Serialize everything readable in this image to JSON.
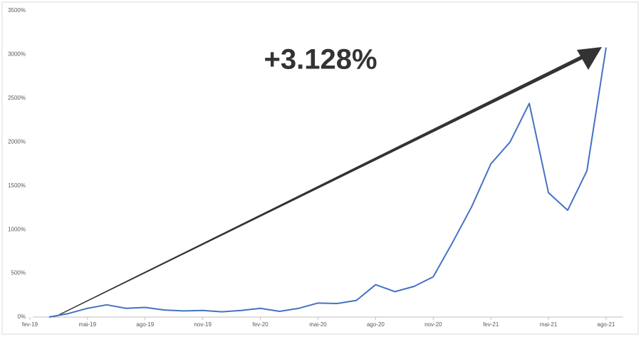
{
  "chart_data": {
    "type": "line",
    "annotation": "+3.128%",
    "x": [
      "2019-03",
      "2019-04",
      "2019-05",
      "2019-06",
      "2019-07",
      "2019-08",
      "2019-09",
      "2019-10",
      "2019-11",
      "2019-12",
      "2020-01",
      "2020-02",
      "2020-03",
      "2020-04",
      "2020-05",
      "2020-06",
      "2020-07",
      "2020-08",
      "2020-09",
      "2020-10",
      "2020-11",
      "2020-12",
      "2021-01",
      "2021-02",
      "2021-03",
      "2021-04",
      "2021-05",
      "2021-06",
      "2021-07",
      "2021-08"
    ],
    "series": [
      {
        "color": "#4472c4",
        "values": [
          0,
          40,
          100,
          140,
          100,
          110,
          80,
          70,
          75,
          60,
          75,
          100,
          65,
          100,
          160,
          155,
          190,
          370,
          290,
          350,
          460,
          850,
          1260,
          1750,
          2000,
          2440,
          1420,
          1220,
          1670,
          3080
        ]
      }
    ],
    "xlim": [
      "2019-02",
      "2021-08"
    ],
    "xticks": [
      {
        "value": "2019-02",
        "label": "fev-19"
      },
      {
        "value": "2019-05",
        "label": "mai-19"
      },
      {
        "value": "2019-08",
        "label": "ago-19"
      },
      {
        "value": "2019-11",
        "label": "nov-19"
      },
      {
        "value": "2020-02",
        "label": "fev-20"
      },
      {
        "value": "2020-05",
        "label": "mai-20"
      },
      {
        "value": "2020-08",
        "label": "ago-20"
      },
      {
        "value": "2020-11",
        "label": "nov-20"
      },
      {
        "value": "2021-02",
        "label": "fev-21"
      },
      {
        "value": "2021-05",
        "label": "mai-21"
      },
      {
        "value": "2021-08",
        "label": "ago-21"
      }
    ],
    "ylim": [
      0,
      3500
    ],
    "yticks": [
      {
        "value": 0,
        "label": "0%"
      },
      {
        "value": 500,
        "label": "500%"
      },
      {
        "value": 1000,
        "label": "1000%"
      },
      {
        "value": 1500,
        "label": "1500%"
      },
      {
        "value": 2000,
        "label": "2000%"
      },
      {
        "value": 2500,
        "label": "2500%"
      },
      {
        "value": 3000,
        "label": "3000%"
      },
      {
        "value": 3500,
        "label": "3500%"
      }
    ],
    "grid": false
  }
}
